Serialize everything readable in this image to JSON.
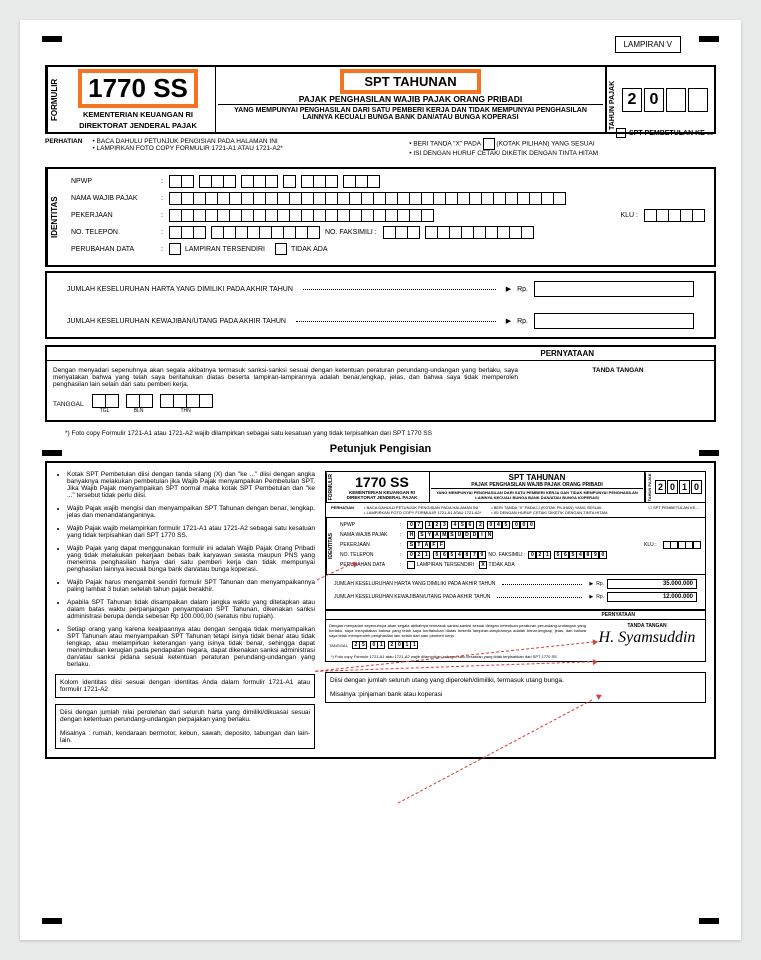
{
  "lampiran": "LAMPIRAN V",
  "formNumber": "1770 SS",
  "ministry1": "KEMENTERIAN KEUANGAN RI",
  "ministry2": "DIREKTORAT JENDERAL PAJAK",
  "sptTitle": "SPT TAHUNAN",
  "sptSub": "PAJAK PENGHASILAN WAJIB PAJAK ORANG PRIBADI",
  "sptDesc": "YANG MEMPUNYAI PENGHASILAN DARI SATU PEMBERI KERJA DAN TIDAK MEMPUNYAI PENGHASILAN LAINNYA KECUALI BUNGA BANK DAN/ATAU BUNGA KOPERASI",
  "tahunLabel": "TAHUN PAJAK",
  "formulirLabel": "FORMULIR",
  "year": [
    "2",
    "0",
    "",
    ""
  ],
  "sptPembetulan": "SPT PEMBETULAN KE-...",
  "perhatianLabel": "PERHATIAN",
  "perhatian": {
    "p1": "BACA DAHULU PETUNJUK PENGISIAN PADA HALAMAN INI",
    "p2": "LAMPIRKAN FOTO COPY FORMULIR 1721-A1 ATAU 1721-A2*",
    "p3": "BERI TANDA \"X\" PADA",
    "p3b": "(KOTAK PILIHAN) YANG SESUAI",
    "p4": "ISI DENGAN HURUF CETAK/ DIKETIK DENGAN TINTA HITAM"
  },
  "identitasLabel": "IDENTITAS",
  "fields": {
    "npwp": "NPWP",
    "nama": "NAMA WAJIB PAJAK",
    "pekerjaan": "PEKERJAAN",
    "telepon": "NO. TELEPON",
    "faksimili": "NO. FAKSIMILI :",
    "klu": "KLU :",
    "perubahan": "PERUBAHAN DATA",
    "lampTersendiri": "LAMPIRAN TERSENDIRI",
    "tidakAda": "TIDAK ADA"
  },
  "harta": {
    "h1": "JUMLAH KESELURUHAN HARTA YANG DIMILIKI PADA AKHIR TAHUN",
    "h2": "JUMLAH KESELURUHAN KEWAJIBAN/UTANG PADA AKHIR TAHUN",
    "rp": "Rp."
  },
  "pernyataanLabel": "PERNYATAAN",
  "pernyataanText": "Dengan menyadari sepenuhnya akan segala akibatnya termasuk sanksi-sanksi sesuai dengan ketentuan peraturan perundang-undangan yang berlaku, saya menyatakan bahwa yang telah saya beritahukan diatas beserta lampiran-lampirannya adalah benar,lengkap, jelas, dan bahwa saya tidak memperoleh penghasilan lain selain dari satu pemberi kerja.",
  "tandaTangan": "TANDA TANGAN",
  "tanggal": "TANGGAL",
  "tgl": "TGL",
  "bln": "BLN",
  "thn": "THN",
  "footnote": "*) Foto copy Formulir 1721-A1 atau 1721-A2 wajib dilampirkan sebagai satu kesatuan yang tidak terpisahkan dari SPT 1770 SS",
  "petunjukTitle": "Petunjuk Pengisian",
  "petunjuk": [
    "Kotak SPT Pembetulan diisi dengan tanda silang (X) dan \"ke ...\" diisi dengan angka banyaknya melakukan pembetulan jika Wajib Pajak menyampaikan Pembetulan SPT. Jika Wajib Pajak menyampaikan SPT normal maka kotak SPT Pembetulan dan \"ke ...\" tersebut tidak perlu diisi.",
    "Wajib Pajak wajib mengisi dan menyampaikan SPT Tahunan dengan benar, lengkap, jelas dan menandatanganinya.",
    "Wajib Pajak wajib melampirkan formulir 1721-A1 atau 1721-A2 sebagai satu kesatuan yang tidak terpisahkan dari SPT 1770 SS.",
    "Wajib Pajak yang dapat menggunakan formulir ini adalah Wajib Pajak Orang Pribadi yang tidak melakukan pekerjaan bebas baik karyawan swasta maupun PNS yang menerima penghasilan hanya dari satu pemberi kerja dan tidak mempunyai penghasilan lainnya kecuali bunga bank dan/atau bunga koperasi.",
    "Wajib Pajak harus mengambil sendiri formulir SPT Tahunan dan menyampaikannya paling lambat 3 bulan setelah tahun pajak berakhir.",
    "Apabila SPT Tahunan tidak disampaikan dalam jangka waktu yang ditetapkan atau dalam batas waktu perpanjangan penyampaian SPT Tahunan, dikenakan sanksi administrasi berupa denda sebesar Rp 100.000,00 (seratus ribu rupiah).",
    "Setiap orang yang karena kealpaannya atau dengan sengaja tidak menyampaikan SPT Tahunan atau menyampaikan SPT Tahunan tetapi isinya tidak benar atau tidak lengkap, atau melampirkan keterangan yang isinya tidak benar, sehingga dapat menimbulkan kerugian pada pendapatan negara, dapat dikenakan sanksi administrasi dan/atau sanksi pidana sesuai ketentuan peraturan perundang-undangan yang berlaku."
  ],
  "noteBoxes": {
    "n1": "Kolom identitas diisi sesuai dengan identitas Anda dalam formulir 1721-A1 atau formulir 1721-A2",
    "n2a": "Diisi dengan jumlah nilai perolehan dari seluruh harta yang dimiliki/dikuasai sesuai dengan ketentuan perundang-undangan perpajakan yang berlaku.",
    "n2b": "Misalnya : rumah, kendaraan bermotor, kebun, sawah, deposito, tabungan dan lain-lain.",
    "n3a": "Diisi dengan jumlah seluruh utang yang diperoleh/dimiliki, termasuk utang bunga.",
    "n3b": "Misalnya :pinjaman bank atau koperasi"
  },
  "example": {
    "year": [
      "2",
      "0",
      "1",
      "0"
    ],
    "npwp": [
      "0",
      "7",
      "",
      "1",
      "2",
      "3",
      "",
      "4",
      "5",
      "6",
      "",
      "2",
      "",
      "0",
      "4",
      "5",
      "",
      "0",
      "0",
      "0"
    ],
    "nama": [
      "H",
      "",
      "S",
      "Y",
      "A",
      "M",
      "S",
      "U",
      "D",
      "D",
      "I",
      "N"
    ],
    "pekerjaan": [
      "S",
      "T",
      "A",
      "F",
      "F"
    ],
    "telepon": [
      "0",
      "2",
      "1",
      "",
      "5",
      "6",
      "5",
      "4",
      "8",
      "7",
      "9"
    ],
    "faks": [
      "0",
      "2",
      "1",
      "",
      "5",
      "6",
      "5",
      "4",
      "8",
      "9",
      "0"
    ],
    "harta1": "35.000.000",
    "harta2": "12.000.000",
    "tgl": [
      "2",
      "5",
      "",
      "0",
      "1",
      "",
      "2",
      "0",
      "1",
      "1"
    ],
    "sig": "H. Syamsuddin"
  }
}
